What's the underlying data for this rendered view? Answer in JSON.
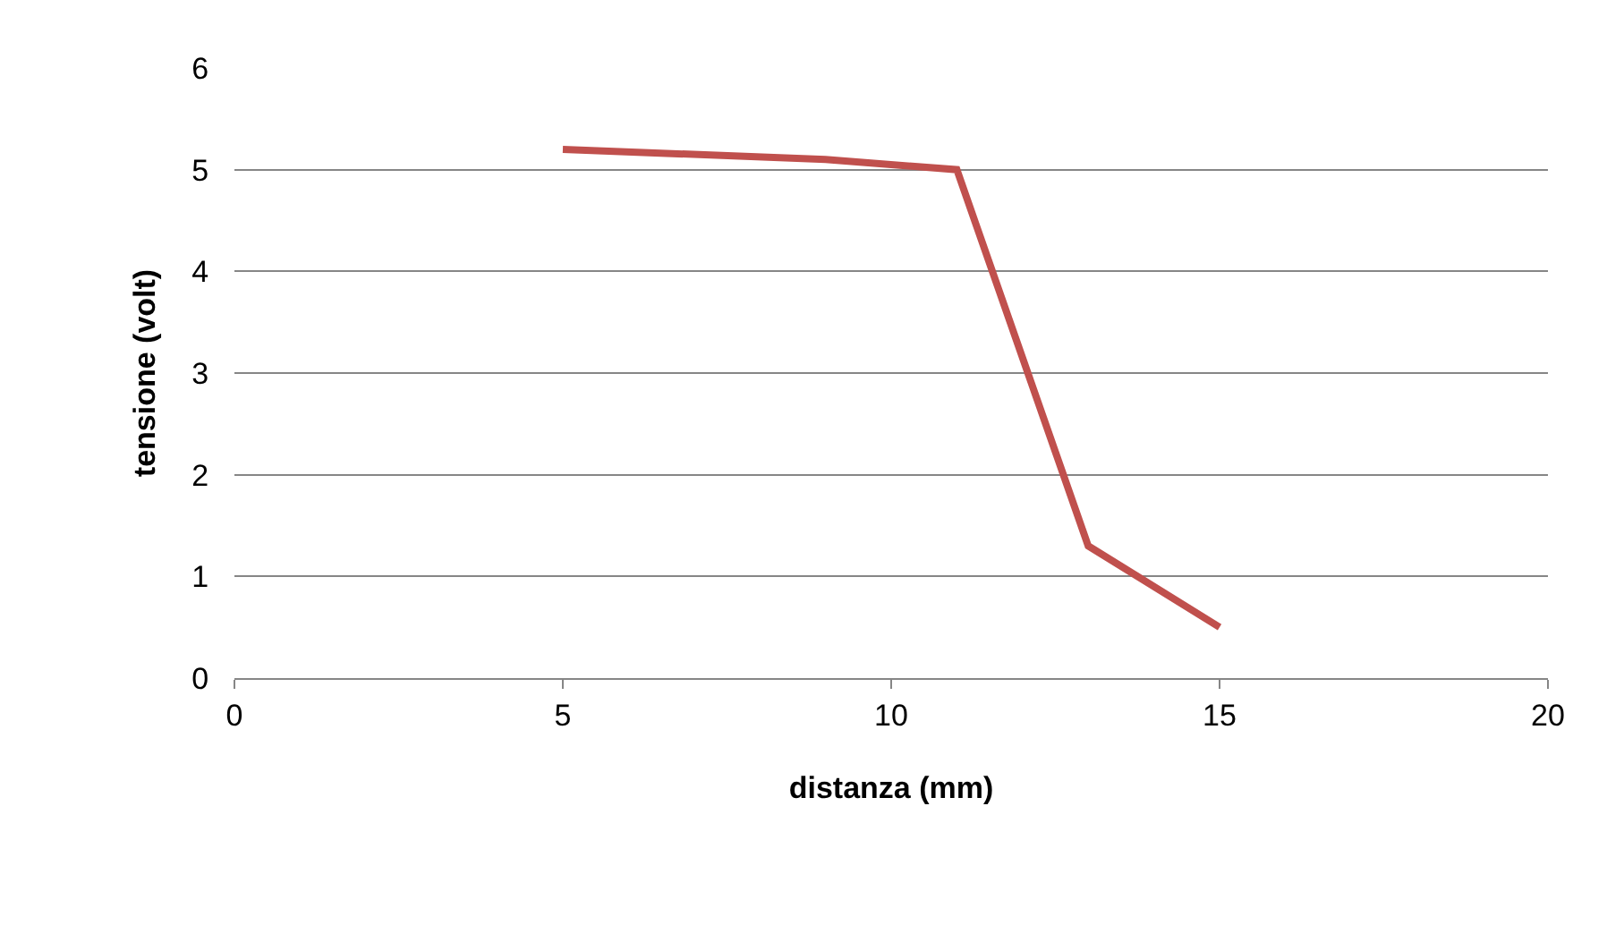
{
  "chart_data": {
    "type": "line",
    "xlabel": "distanza (mm)",
    "ylabel": "tensione (volt)",
    "x": [
      5,
      9,
      11,
      13,
      15
    ],
    "series": [
      {
        "color": "#c0504d",
        "values": [
          5.2,
          5.1,
          5.0,
          1.3,
          0.5
        ]
      }
    ],
    "xlim": [
      0,
      20
    ],
    "xticks": [
      0,
      5,
      10,
      15,
      20
    ],
    "ylim": [
      0,
      6
    ],
    "yticks": [
      0,
      1,
      2,
      3,
      4,
      5,
      6
    ],
    "grid": "y",
    "marker": "none",
    "line_style": "solid",
    "legend": false
  }
}
